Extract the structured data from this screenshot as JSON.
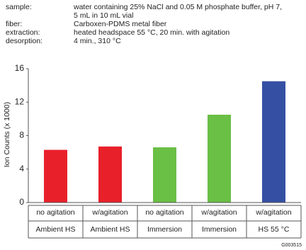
{
  "info": [
    {
      "label": "sample:",
      "lines": [
        "water containing 25% NaCl and 0.05 M phosphate buffer, pH 7,",
        "5 mL in 10 mL vial"
      ]
    },
    {
      "label": "fiber:",
      "lines": [
        "Carboxen-PDMS metal fiber"
      ]
    },
    {
      "label": "extraction:",
      "lines": [
        "heated headspace 55 °C, 20 min. with agitation"
      ]
    },
    {
      "label": "desorption:",
      "lines": [
        "4 min., 310 °C"
      ]
    }
  ],
  "chart_data": {
    "type": "bar",
    "y_label": "Ion Counts (x 1000)",
    "categories": [
      "no agitation",
      "w/agitation",
      "no agitation",
      "w/agitation",
      "w/agitation"
    ],
    "subcategories": [
      "Ambient HS",
      "Ambient HS",
      "Immersion",
      "Immersion",
      "HS 55 °C"
    ],
    "values": [
      6.3,
      6.7,
      6.6,
      10.5,
      14.5
    ],
    "colors": [
      "#e8202a",
      "#e8202a",
      "#6abf45",
      "#6abf45",
      "#3550a3"
    ],
    "ylim": [
      0,
      16
    ],
    "yticks": [
      0,
      4,
      8,
      12,
      16
    ],
    "grid": false
  },
  "footer": "G003515"
}
